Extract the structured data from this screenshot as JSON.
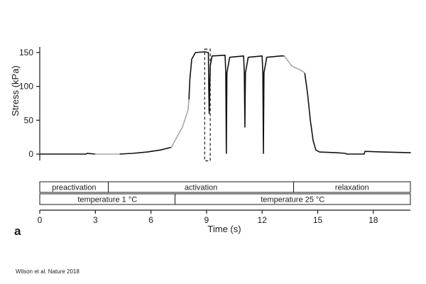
{
  "chart_data": {
    "type": "line",
    "panel_label": "a",
    "xlabel": "Time (s)",
    "ylabel": "Stress (kPa)",
    "xlim": [
      0,
      20
    ],
    "ylim": [
      -5,
      158
    ],
    "xticks": [
      0,
      3,
      6,
      9,
      12,
      15,
      18
    ],
    "yticks": [
      0,
      50,
      100,
      150
    ],
    "grid": false,
    "series": [
      {
        "color": "#111111",
        "segments": [
          [
            [
              0,
              0
            ],
            [
              1.4,
              0
            ],
            [
              2.5,
              0
            ],
            [
              2.55,
              1
            ],
            [
              3.0,
              0
            ]
          ],
          [
            [
              4.3,
              0
            ],
            [
              5.0,
              1
            ],
            [
              5.8,
              3
            ],
            [
              6.5,
              6
            ],
            [
              7.1,
              10
            ]
          ],
          [
            [
              8.05,
              80
            ],
            [
              8.1,
              110
            ],
            [
              8.2,
              140
            ],
            [
              8.4,
              150
            ],
            [
              8.9,
              151
            ],
            [
              9.1,
              150
            ],
            [
              9.12,
              100
            ],
            [
              9.14,
              60
            ],
            [
              9.2,
              130
            ],
            [
              9.3,
              145
            ],
            [
              10.0,
              146
            ],
            [
              10.04,
              120
            ],
            [
              10.07,
              1
            ],
            [
              10.1,
              120
            ],
            [
              10.25,
              143
            ],
            [
              11.0,
              145
            ],
            [
              11.04,
              120
            ],
            [
              11.07,
              40
            ],
            [
              11.1,
              120
            ],
            [
              11.25,
              143
            ],
            [
              12.0,
              145
            ],
            [
              12.04,
              120
            ],
            [
              12.07,
              1
            ],
            [
              12.1,
              120
            ],
            [
              12.25,
              143
            ],
            [
              13.0,
              145
            ],
            [
              13.2,
              145
            ]
          ],
          [
            [
              14.3,
              120
            ],
            [
              14.45,
              90
            ],
            [
              14.6,
              50
            ],
            [
              14.75,
              20
            ],
            [
              14.9,
              6
            ],
            [
              15.1,
              3
            ],
            [
              16.0,
              2
            ],
            [
              16.5,
              1
            ],
            [
              16.55,
              0
            ],
            [
              17.5,
              0
            ],
            [
              17.55,
              4
            ],
            [
              18.5,
              3
            ],
            [
              20.0,
              2
            ]
          ]
        ]
      },
      {
        "color": "#a8a8a8",
        "segments": [
          [
            [
              3.0,
              0
            ],
            [
              4.3,
              0
            ]
          ],
          [
            [
              7.1,
              10
            ],
            [
              7.4,
              25
            ],
            [
              7.7,
              40
            ],
            [
              8.0,
              65
            ],
            [
              8.05,
              80
            ]
          ],
          [
            [
              13.2,
              145
            ],
            [
              13.6,
              130
            ],
            [
              14.0,
              125
            ],
            [
              14.3,
              120
            ]
          ]
        ]
      }
    ],
    "annotations": [
      {
        "type": "dashed-box",
        "x": [
          8.9,
          9.2
        ],
        "y": [
          -10,
          155
        ]
      }
    ],
    "phase_bars": [
      {
        "row": 1,
        "segments": [
          {
            "label": "preactivation",
            "start": 0,
            "end": 3.7
          },
          {
            "label": "activation",
            "start": 3.7,
            "end": 13.7
          },
          {
            "label": "relaxation",
            "start": 13.7,
            "end": 20
          }
        ]
      },
      {
        "row": 2,
        "segments": [
          {
            "label": "temperature 1 °C",
            "start": 0,
            "end": 7.3
          },
          {
            "label": "temperature 25 °C",
            "start": 7.3,
            "end": 20
          }
        ]
      }
    ]
  },
  "credit": "Wilson et al. Nature 2018"
}
